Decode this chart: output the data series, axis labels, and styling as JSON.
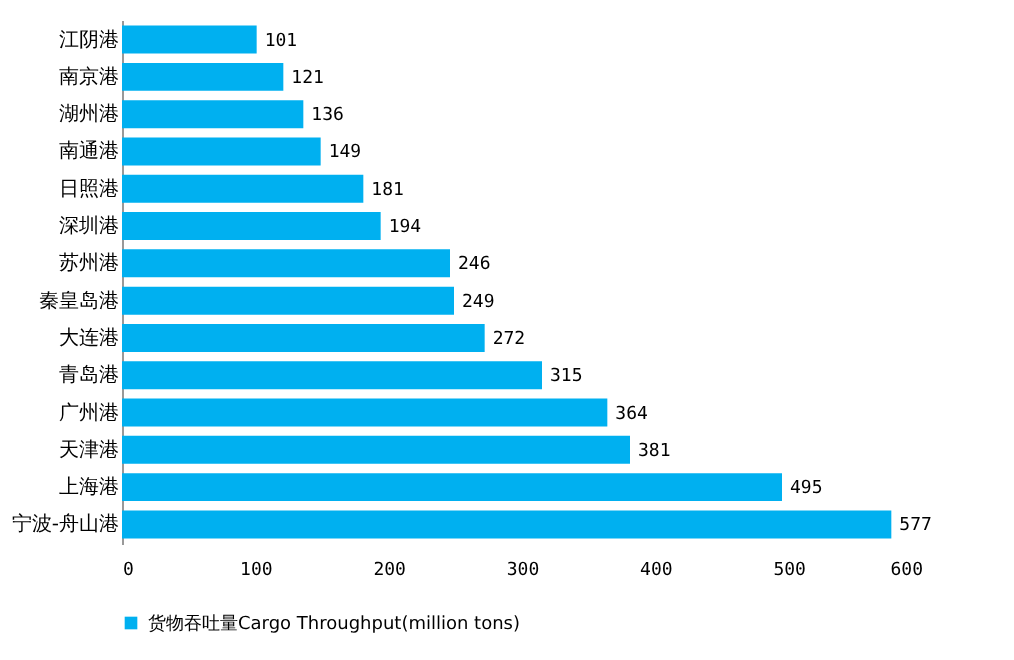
{
  "chart_data": {
    "type": "bar",
    "orientation": "horizontal",
    "categories": [
      "江阴港",
      "南京港",
      "湖州港",
      "南通港",
      "日照港",
      "深圳港",
      "苏州港",
      "秦皇岛港",
      "大连港",
      "青岛港",
      "广州港",
      "天津港",
      "上海港",
      "宁波-舟山港"
    ],
    "series": [
      {
        "name": "货物吞吐量Cargo Throughput(million tons)",
        "color": "#00b0f0",
        "values": [
          101,
          121,
          136,
          149,
          181,
          194,
          246,
          249,
          272,
          315,
          364,
          381,
          495,
          577
        ]
      }
    ],
    "xlim": [
      0,
      600
    ],
    "xticks": [
      0,
      100,
      200,
      300,
      400,
      500,
      600
    ],
    "data_labels": true,
    "legend": "bottom",
    "grid": false
  }
}
